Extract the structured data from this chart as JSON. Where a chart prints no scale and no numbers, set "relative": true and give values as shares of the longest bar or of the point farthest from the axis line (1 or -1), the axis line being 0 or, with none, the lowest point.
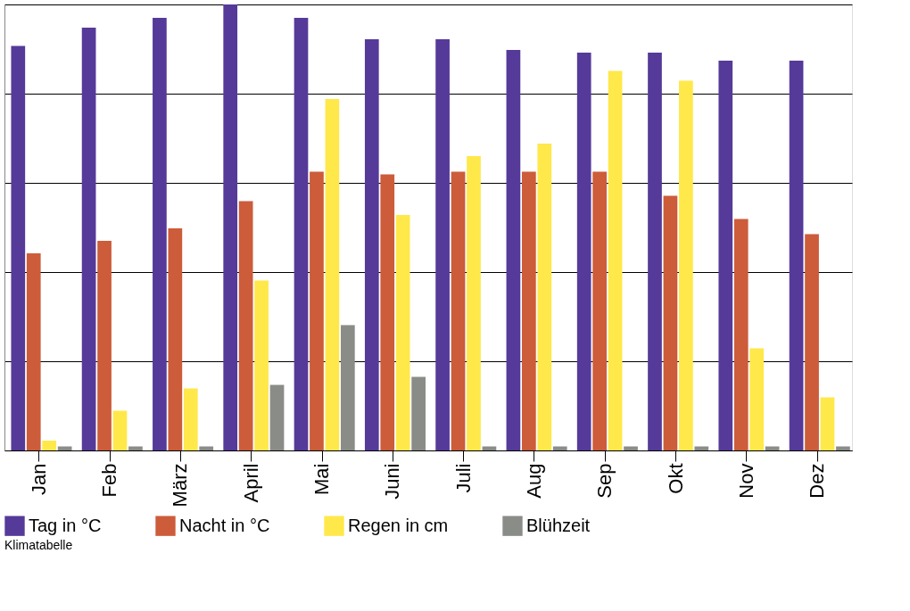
{
  "chart_data": {
    "type": "bar",
    "relative": true,
    "grid": "y",
    "legend": "bottom",
    "categories": [
      "Jan",
      "Feb",
      "März",
      "April",
      "Mai",
      "Juni",
      "Juli",
      "Aug",
      "Sep",
      "Okt",
      "Nov",
      "Dez"
    ],
    "series": [
      {
        "name": "Tag in °C",
        "color": "#553a99",
        "values": [
          0.907,
          0.948,
          0.97,
          1,
          0.97,
          0.922,
          0.922,
          0.898,
          0.892,
          0.892,
          0.874,
          0.874
        ]
      },
      {
        "name": "Nacht in °C",
        "color": "#cc5c3a",
        "values": [
          0.442,
          0.47,
          0.498,
          0.559,
          0.625,
          0.619,
          0.625,
          0.625,
          0.625,
          0.571,
          0.519,
          0.485
        ]
      },
      {
        "name": "Regen in cm",
        "color": "#ffe84a",
        "values": [
          0.022,
          0.089,
          0.139,
          0.381,
          0.788,
          0.528,
          0.66,
          0.688,
          0.851,
          0.829,
          0.229,
          0.119
        ]
      },
      {
        "name": "Blühzeit",
        "color": "#8a8c88",
        "values": [
          0.009,
          0.009,
          0.009,
          0.147,
          0.281,
          0.165,
          0.009,
          0.009,
          0.009,
          0.009,
          0.009,
          0.009
        ]
      }
    ],
    "annotations": [
      "Klimatabelle"
    ]
  }
}
